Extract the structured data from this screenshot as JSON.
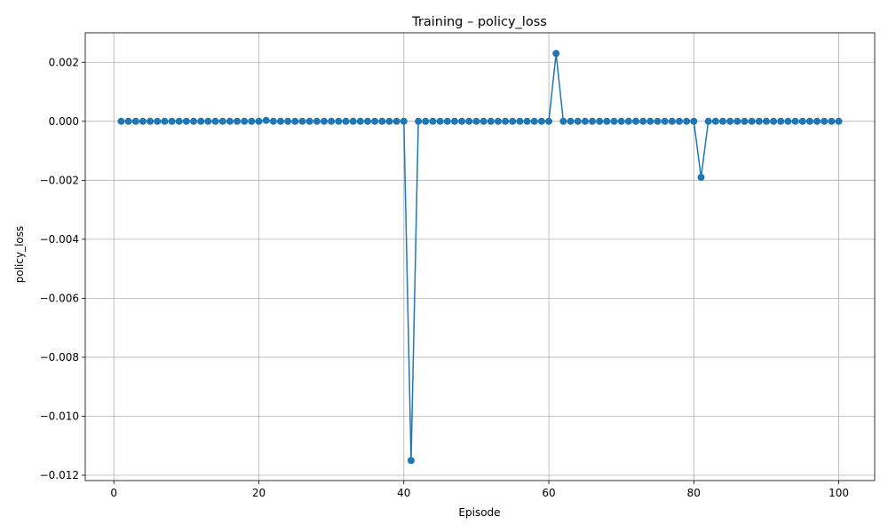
{
  "chart_data": {
    "type": "line",
    "title": "Training – policy_loss",
    "xlabel": "Episode",
    "ylabel": "policy_loss",
    "xlim": [
      -3.95,
      104.95
    ],
    "ylim": [
      -0.01218,
      0.003
    ],
    "xticks": [
      0,
      20,
      40,
      60,
      80,
      100
    ],
    "xtick_labels": [
      "0",
      "20",
      "40",
      "60",
      "80",
      "100"
    ],
    "yticks": [
      -0.012,
      -0.01,
      -0.008,
      -0.006,
      -0.004,
      -0.002,
      0.0,
      0.002
    ],
    "ytick_labels": [
      "−0.012",
      "−0.010",
      "−0.008",
      "−0.006",
      "−0.004",
      "−0.002",
      "0.000",
      "0.002"
    ],
    "grid": true,
    "legend": "none",
    "color": "#1f77b4",
    "series": [
      {
        "x": [
          1,
          2,
          3,
          4,
          5,
          6,
          7,
          8,
          9,
          10,
          11,
          12,
          13,
          14,
          15,
          16,
          17,
          18,
          19,
          20,
          21,
          22,
          23,
          24,
          25,
          26,
          27,
          28,
          29,
          30,
          31,
          32,
          33,
          34,
          35,
          36,
          37,
          38,
          39,
          40,
          41,
          42,
          43,
          44,
          45,
          46,
          47,
          48,
          49,
          50,
          51,
          52,
          53,
          54,
          55,
          56,
          57,
          58,
          59,
          60,
          61,
          62,
          63,
          64,
          65,
          66,
          67,
          68,
          69,
          70,
          71,
          72,
          73,
          74,
          75,
          76,
          77,
          78,
          79,
          80,
          81,
          82,
          83,
          84,
          85,
          86,
          87,
          88,
          89,
          90,
          91,
          92,
          93,
          94,
          95,
          96,
          97,
          98,
          99,
          100
        ],
        "y": [
          0,
          0,
          0,
          0,
          0,
          0,
          0,
          0,
          0,
          0,
          0,
          0,
          0,
          0,
          0,
          0,
          0,
          0,
          0,
          0,
          3e-05,
          0,
          0,
          0,
          0,
          0,
          0,
          0,
          0,
          0,
          0,
          0,
          0,
          0,
          0,
          0,
          0,
          0,
          0,
          0,
          -0.0115,
          0,
          0,
          0,
          0,
          0,
          0,
          0,
          0,
          0,
          0,
          0,
          0,
          0,
          0,
          0,
          0,
          0,
          0,
          0,
          0.0023,
          0,
          0,
          0,
          0,
          0,
          0,
          0,
          0,
          0,
          0,
          0,
          0,
          0,
          0,
          0,
          0,
          0,
          0,
          0,
          -0.0019,
          0,
          0,
          0,
          0,
          0,
          0,
          0,
          0,
          0,
          0,
          0,
          0,
          0,
          0,
          0,
          0,
          0,
          0,
          0
        ]
      }
    ]
  }
}
